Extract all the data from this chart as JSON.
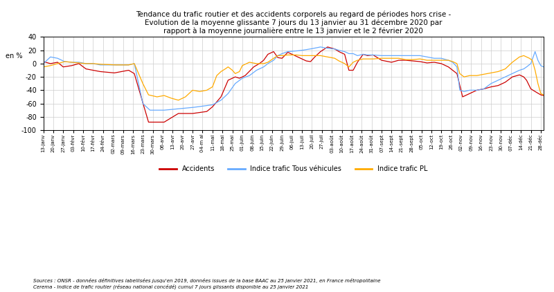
{
  "title": "Tendance du trafic routier et des accidents corporels au regard de périodes hors crise -\nEvolution de la moyenne glissante 7 jours du 13 janvier au 31 décembre 2020 par\nrapport à la moyenne journalière entre le 13 janvier et le 2 février 2020",
  "ylabel": "en %",
  "ylim": [
    -100,
    40
  ],
  "yticks": [
    -100,
    -80,
    -60,
    -40,
    -20,
    0,
    20,
    40
  ],
  "source_text": "Sources : ONSR - données définitives labellisées jusqu'en 2019, données issues de la base BAAC au 25 janvier 2021, en France métropolitaine\nCerema - Indice de trafic routier (réseau national concédé) cumul 7 jours glissants disponible au 25 janvier 2021",
  "legend": [
    "Accidents",
    "Indice trafic Tous véhicules",
    "Indice trafic PL"
  ],
  "colors": [
    "#cc0000",
    "#66aaff",
    "#ffaa00"
  ],
  "background_color": "#ffffff",
  "grid_color": "#cccccc",
  "xtick_labels": [
    "13-janv",
    "20-janv",
    "27-janv",
    "03-févr",
    "10-févr",
    "17-févr",
    "24-févr",
    "02-mars",
    "09-mars",
    "16-mars",
    "23-mars",
    "30-mars",
    "06-avr",
    "13-avr",
    "20-avr",
    "27-avr",
    "04-m ai",
    "11-mai",
    "18-mai",
    "25-mai",
    "01-juin",
    "08-juin",
    "15-juin",
    "22-juin",
    "29-juin",
    "06-juil",
    "13-juil",
    "20-juil",
    "27-juil",
    "03-août",
    "10-août",
    "17-août",
    "24-août",
    "31-août",
    "07-sept",
    "14-sept",
    "21-sept",
    "28-sept",
    "05-oct",
    "12-oct",
    "19-oct",
    "26-oct",
    "02-nov",
    "09-nov",
    "16-nov",
    "23-nov",
    "30-nov",
    "07-déc",
    "14-déc",
    "21-déc",
    "28-déc"
  ]
}
